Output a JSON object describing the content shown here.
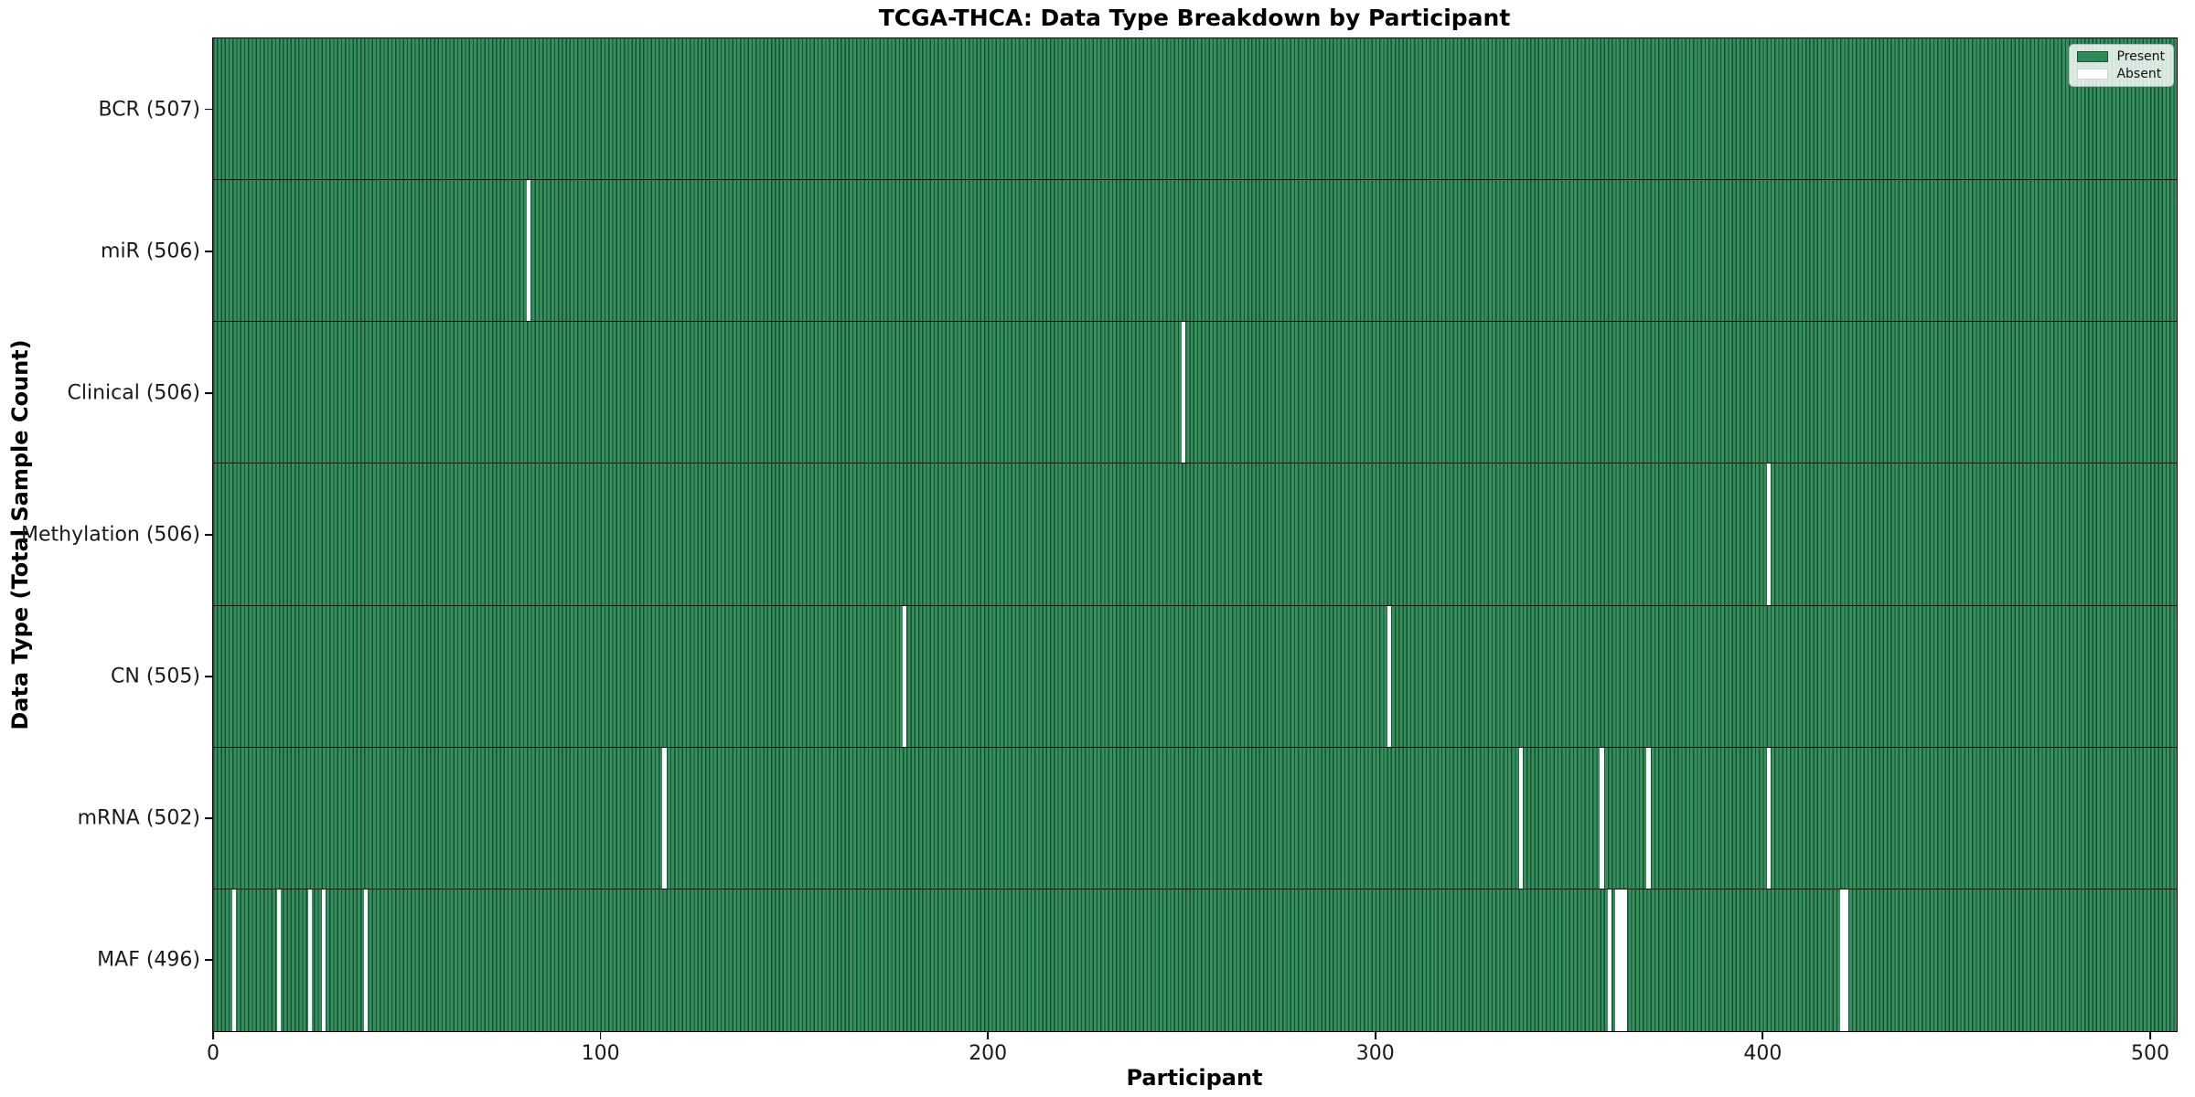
{
  "chart_data": {
    "type": "heatmap",
    "title": "TCGA-THCA: Data Type Breakdown by Participant",
    "xlabel": "Participant",
    "ylabel": "Data Type (Total Sample Count)",
    "x_ticks": [
      0,
      100,
      200,
      300,
      400,
      500
    ],
    "x_tick_labels": [
      "0",
      "100",
      "200",
      "300",
      "400",
      "500"
    ],
    "x_range": [
      0,
      507
    ],
    "total_participants": 507,
    "grid": false,
    "legend": {
      "position": "upper right",
      "entries": [
        {
          "label": "Present",
          "color": "#2e8b57"
        },
        {
          "label": "Absent",
          "color": "#ffffff"
        }
      ]
    },
    "colors": {
      "present_fill": "#2e8b57",
      "bar_edge": "#1d5435",
      "absent_fill": "#ffffff",
      "row_separator": "#000000"
    },
    "rows": [
      {
        "label": "BCR (507)",
        "data_type": "BCR",
        "total": 507,
        "absent_gaps": []
      },
      {
        "label": "miR (506)",
        "data_type": "miR",
        "total": 506,
        "absent_gaps": [
          {
            "start": 81,
            "width": 1
          }
        ]
      },
      {
        "label": "Clinical (506)",
        "data_type": "Clinical",
        "total": 506,
        "absent_gaps": [
          {
            "start": 250,
            "width": 1
          }
        ]
      },
      {
        "label": "Methylation (506)",
        "data_type": "Methylation",
        "total": 506,
        "absent_gaps": [
          {
            "start": 401,
            "width": 1
          }
        ]
      },
      {
        "label": "CN (505)",
        "data_type": "CN",
        "total": 505,
        "absent_gaps": [
          {
            "start": 178,
            "width": 1
          },
          {
            "start": 303,
            "width": 1
          }
        ]
      },
      {
        "label": "mRNA (502)",
        "data_type": "mRNA",
        "total": 502,
        "absent_gaps": [
          {
            "start": 116,
            "width": 1
          },
          {
            "start": 337,
            "width": 1
          },
          {
            "start": 358,
            "width": 1
          },
          {
            "start": 370,
            "width": 1
          },
          {
            "start": 401,
            "width": 1
          }
        ]
      },
      {
        "label": "MAF (496)",
        "data_type": "MAF",
        "total": 496,
        "absent_gaps": [
          {
            "start": 5,
            "width": 1
          },
          {
            "start": 16.5,
            "width": 1
          },
          {
            "start": 24.5,
            "width": 1
          },
          {
            "start": 28,
            "width": 1
          },
          {
            "start": 39,
            "width": 1
          },
          {
            "start": 360,
            "width": 1
          },
          {
            "start": 362,
            "width": 3
          },
          {
            "start": 420,
            "width": 2
          }
        ]
      }
    ]
  }
}
